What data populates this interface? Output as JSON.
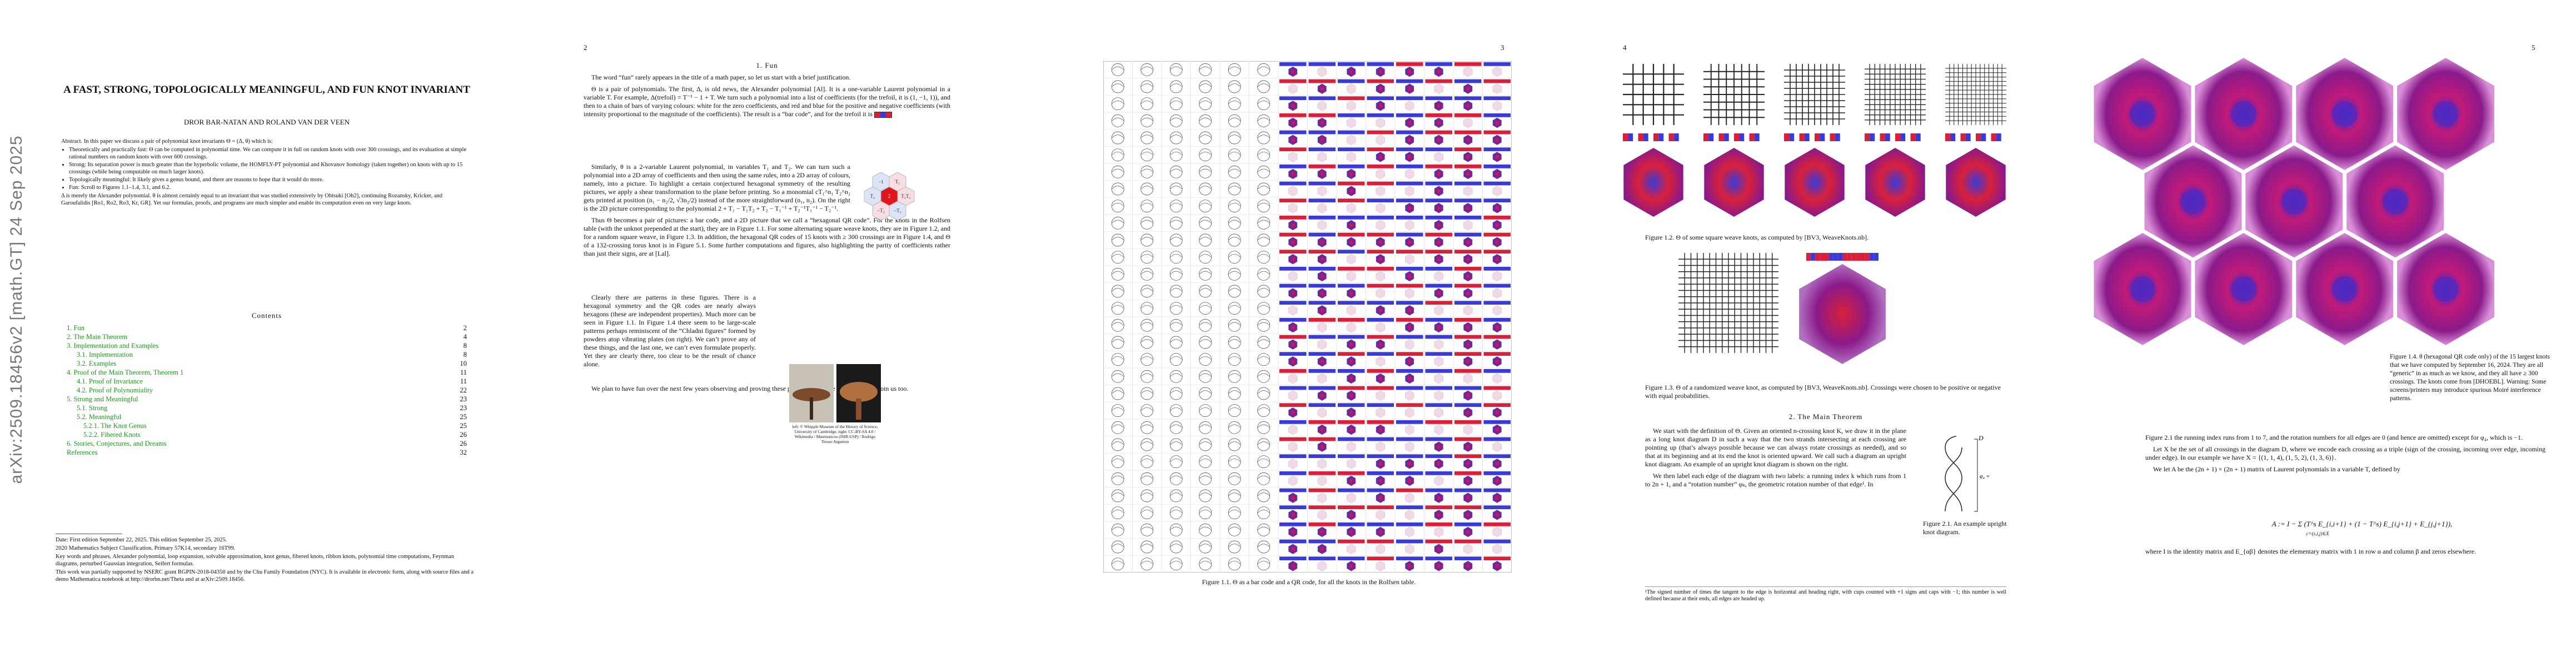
{
  "page1": {
    "arxiv_stamp": "arXiv:2509.18456v2  [math.GT]  24 Sep 2025",
    "title": "A FAST, STRONG, TOPOLOGICALLY MEANINGFUL, AND FUN KNOT INVARIANT",
    "authors": "DROR BAR-NATAN AND ROLAND VAN DER VEEN",
    "abstract_intro": "Abstract. In this paper we discuss a pair of polynomial knot invariants Θ = (Δ, θ) which is:",
    "bullets": [
      "Theoretically and practically fast: Θ can be computed in polynomial time. We can compute it in full on random knots with over 300 crossings, and its evaluation at simple rational numbers on random knots with over 600 crossings.",
      "Strong: Its separation power is much greater than the hyperbolic volume, the HOMFLY-PT polynomial and Khovanov homology (taken together) on knots with up to 15 crossings (while being computable on much larger knots).",
      "Topologically meaningful: It likely gives a genus bound, and there are reasons to hope that it would do more.",
      "Fun: Scroll to Figures 1.1–1.4, 3.1, and 6.2."
    ],
    "abstract_outro": "Δ is merely the Alexander polynomial. θ is almost certainly equal to an invariant that was studied extensively by Ohtsuki [Oh2], continuing Rozansky, Kricker, and Garoufalidis [Ro1, Ro2, Ro3, Kr, GR]. Yet our formulas, proofs, and programs are much simpler and enable its computation even on very large knots.",
    "contents_heading": "Contents",
    "toc": [
      {
        "label": "1.  Fun",
        "page": "2",
        "level": 0
      },
      {
        "label": "2.  The Main Theorem",
        "page": "4",
        "level": 0
      },
      {
        "label": "3.  Implementation and Examples",
        "page": "8",
        "level": 0
      },
      {
        "label": "3.1.  Implementation",
        "page": "8",
        "level": 1
      },
      {
        "label": "3.2.  Examples",
        "page": "10",
        "level": 1
      },
      {
        "label": "4.  Proof of the Main Theorem, Theorem 1",
        "page": "11",
        "level": 0
      },
      {
        "label": "4.1.  Proof of Invariance",
        "page": "11",
        "level": 1
      },
      {
        "label": "4.2.  Proof of Polynomiality",
        "page": "22",
        "level": 1
      },
      {
        "label": "5.  Strong and Meaningful",
        "page": "23",
        "level": 0
      },
      {
        "label": "5.1.  Strong",
        "page": "23",
        "level": 1
      },
      {
        "label": "5.2.  Meaningful",
        "page": "25",
        "level": 1
      },
      {
        "label": "5.2.1.  The Knot Genus",
        "page": "25",
        "level": 2
      },
      {
        "label": "5.2.2.  Fibered Knots",
        "page": "26",
        "level": 2
      },
      {
        "label": "6.  Stories, Conjectures, and Dreams",
        "page": "26",
        "level": 0
      },
      {
        "label": "References",
        "page": "32",
        "level": 0
      }
    ],
    "footnotes": [
      "Date: First edition September 22, 2025. This edition September 25, 2025.",
      "2020 Mathematics Subject Classification. Primary 57K14, secondary 16T99.",
      "Key words and phrases. Alexander polynomial, loop expansion, solvable approximation, knot genus, fibered knots, ribbon knots, polynomial time computations, Feynman diagrams, perturbed Gaussian integration, Seifert formulas.",
      "This work was partially supported by NSERC grant RGPIN-2018-04350 and by the Chu Family Foundation (NYC). It is available in electronic form, along with source files and a demo Mathematica notebook at http://drorbn.net/Theta and at arXiv:2509.18456."
    ]
  },
  "page2": {
    "page_number": "2",
    "heading": "1.  Fun",
    "paragraphs": [
      "The word “fun” rarely appears in the title of a math paper, so let us start with a brief justification.",
      "Θ is a pair of polynomials. The first, Δ, is old news, the Alexander polynomial [Al]. It is a one-variable Laurent polynomial in a variable T. For example, Δ(trefoil) = T⁻¹ − 1 + T. We turn such a polynomial into a list of coefficients (for the trefoil, it is (1, −1, 1)), and then to a chain of bars of varying colours: white for the zero coefficients, and red and blue for the positive and negative coefficients (with intensity proportional to the magnitude of the coefficients). The result is a “bar code”, and for the trefoil it is",
      "Similarly, θ is a 2-variable Laurent polynomial, in variables T₁ and T₂. We can turn such a polynomial into a 2D array of coefficients and then using the same rules, into a 2D array of colours, namely, into a picture. To highlight a certain conjectured hexagonal symmetry of the resulting pictures, we apply a shear transformation to the plane before printing. So a monomial cT₁^n₁ T₂^n₂ gets printed at position (n₁ − n₂/2, √3n₂/2) instead of the more straightforward (n₁, n₂). On the right is the 2D picture corresponding to the polynomial 2 + T₁ − T₁T₂ + T₂ − T₁⁻¹ + T₂⁻¹T₁⁻¹ − T₂⁻¹.",
      "Thus Θ becomes a pair of pictures: a bar code, and a 2D picture that we call a “hexagonal QR code”. For the knots in the Rolfsen table (with the unknot prepended at the start), they are in Figure 1.1. For some alternating square weave knots, they are in Figure 1.2, and for a random square weave, in Figure 1.3. In addition, the hexagonal QR codes of 15 knots with ≥ 300 crossings are in Figure 1.4, and Θ of a 132-crossing torus knot is in Figure 5.1. Some further computations and figures, also highlighting the parity of coefficients rather than just their signs, are at [Lal].",
      "Clearly there are patterns in these figures. There is a hexagonal symmetry and the QR codes are nearly always hexagons (these are independent properties). Much more can be seen in Figure 1.1. In Figure 1.4 there seem to be large-scale patterns perhaps reminiscent of the “Chladni figures” formed by powders atop vibrating plates (on right). We can’t prove any of these things, and the last one, we can’t even formulate properly. Yet they are clearly there, too clear to be the result of chance alone.",
      "We plan to have fun over the next few years observing and proving these patterns. We hope that others will join us too."
    ],
    "photo_caption": "left: © Whipple Museum of the History of Science, University of Cambridge, right: CC-BY-SA 4.0 / Wikimedia / Matematicos (ISIR-USP) / Rodrigo Tetsuo Argenton",
    "hex_labels": [
      "−1",
      "T₁",
      "T₂",
      "T₁T₂",
      "2",
      "−T₁",
      "−T₂"
    ]
  },
  "page3": {
    "page_number": "3",
    "figure_caption": "Figure 1.1.  Θ as a bar code and a QR code, for all the knots in the Rolfsen table."
  },
  "page4": {
    "page_number": "4",
    "fig12_caption": "Figure 1.2.  Θ of some square weave knots, as computed by [BV3, WeaveKnots.nb].",
    "fig13_caption": "Figure 1.3.  Θ of a randomized weave knot, as computed by [BV3, WeaveKnots.nb]. Crossings were chosen to be positive or negative with equal probabilities.",
    "heading": "2.  The Main Theorem",
    "paragraphs": [
      "We start with the definition of Θ. Given an oriented n-crossing knot K, we draw it in the plane as a long knot diagram D in such a way that the two strands intersecting at each crossing are pointing up (that’s always possible because we can always rotate crossings as needed), and so that at its beginning and at its end the knot is oriented upward. We call such a diagram an upright knot diagram. An example of an upright knot diagram is shown on the right.",
      "We then label each edge of the diagram with two labels: a running index k which runs from 1 to 2n + 1, and a “rotation number” φₖ, the geometric rotation number of that edge¹. In"
    ],
    "fig21_label_D": "D",
    "fig21_label_phi": "φ₄ = −1",
    "fig21_caption": "Figure 2.1.  An example upright knot diagram.",
    "footnote": "¹The signed number of times the tangent to the edge is horizontal and heading right, with cups counted with +1 signs and caps with −1; this number is well defined because at their ends, all edges are headed up."
  },
  "page5": {
    "page_number": "5",
    "fig14_caption": "Figure 1.4.  θ (hexagonal QR code only) of the 15 largest knots that we have computed by September 16, 2024. They are all “generic” in as much as we know, and they all have ≥ 300 crossings. The knots come from [DHOEBL]. Warning: Some screens/printers may introduce spurious Moiré interference patterns.",
    "paragraphs": [
      "Figure 2.1 the running index runs from 1 to 7, and the rotation numbers for all edges are 0 (and hence are omitted) except for φ₄, which is −1.",
      "Let X be the set of all crossings in the diagram D, where we encode each crossing as a triple (sign of the crossing, incoming over edge, incoming under edge). In our example we have X = {(1, 1, 4), (1, 5, 2), (1, 3, 6)}.",
      "We let A be the (2n + 1) × (2n + 1) matrix of Laurent polynomials in a variable T, defined by"
    ],
    "equation": "A := I − Σ (T^s E_{i,i+1} + (1 − T^s) E_{i,j+1} + E_{j,j+1}),",
    "equation_sub": "c=(s,i,j)∈X",
    "after_eq": "where I is the identity matrix and E_{αβ} denotes the elementary matrix with 1 in row α and column β and zeros elsewhere."
  },
  "colors": {
    "link_green": "#1a9a1a",
    "qr_red": "#d8203a",
    "qr_blue": "#3a3ad8",
    "qr_purple": "#8a1a8a"
  }
}
